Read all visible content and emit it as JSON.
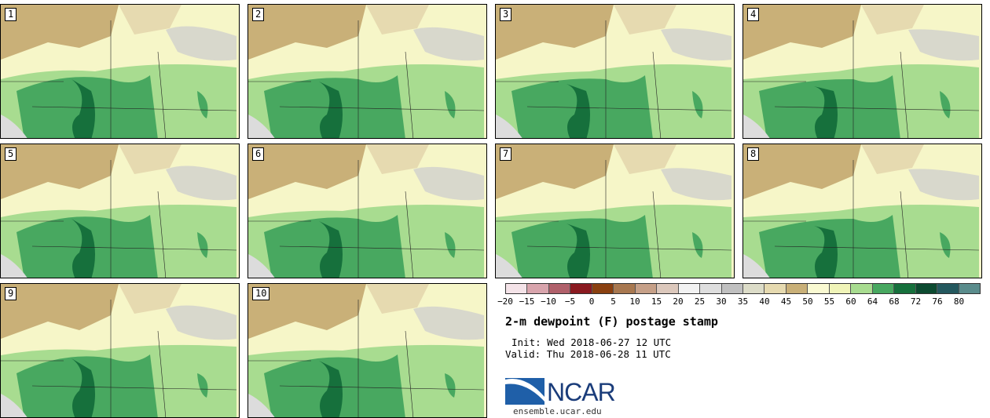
{
  "panels": [
    {
      "label": "1"
    },
    {
      "label": "2"
    },
    {
      "label": "3"
    },
    {
      "label": "4"
    },
    {
      "label": "5"
    },
    {
      "label": "6"
    },
    {
      "label": "7"
    },
    {
      "label": "8"
    },
    {
      "label": "9"
    },
    {
      "label": "10"
    }
  ],
  "colorbar": {
    "colors": [
      "#f4e3e8",
      "#d8a4ac",
      "#b0606a",
      "#8a1a20",
      "#8a4010",
      "#a87850",
      "#c6a088",
      "#dcc8bc",
      "#f2f2f2",
      "#dedede",
      "#c0c0c0",
      "#dcdcc8",
      "#e6dab0",
      "#c9b078",
      "#fafad2",
      "#f0f4b8",
      "#a8dc90",
      "#48a860",
      "#16703c",
      "#0c4a30",
      "#24585e",
      "#5a8c8c"
    ],
    "ticks": [
      "−20",
      "−15",
      "−10",
      "−5",
      "0",
      "5",
      "10",
      "15",
      "20",
      "25",
      "30",
      "35",
      "40",
      "45",
      "50",
      "55",
      "60",
      "64",
      "68",
      "72",
      "76",
      "80"
    ]
  },
  "title": "2-m dewpoint (F) postage stamp",
  "init": "Init: Wed 2018-06-27 12 UTC",
  "valid": "Valid: Thu 2018-06-28 11 UTC",
  "logo": {
    "text": "NCAR"
  },
  "site": "ensemble.ucar.edu"
}
